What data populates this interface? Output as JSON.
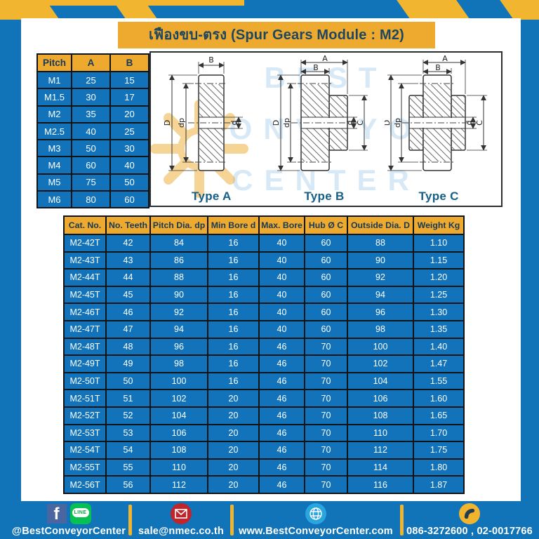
{
  "header": {
    "title": "เฟืองขบ-ตรง (Spur Gears Module : M2)"
  },
  "pitch_table": {
    "headers": [
      "Pitch",
      "A",
      "B"
    ],
    "rows": [
      [
        "M1",
        "25",
        "15"
      ],
      [
        "M1.5",
        "30",
        "17"
      ],
      [
        "M2",
        "35",
        "20"
      ],
      [
        "M2.5",
        "40",
        "25"
      ],
      [
        "M3",
        "50",
        "30"
      ],
      [
        "M4",
        "60",
        "40"
      ],
      [
        "M5",
        "75",
        "50"
      ],
      [
        "M6",
        "80",
        "60"
      ]
    ]
  },
  "diagrams": {
    "watermark_lines": [
      "BEST",
      "CONVEYOR",
      "CENTER"
    ],
    "types": [
      {
        "label": "Type A",
        "top_dims": [
          "B"
        ],
        "left_dims": [
          "D",
          "dp"
        ],
        "right_dims": [
          "d"
        ]
      },
      {
        "label": "Type B",
        "top_dims": [
          "A",
          "B"
        ],
        "left_dims": [
          "D",
          "dp"
        ],
        "right_dims": [
          "d",
          "C"
        ]
      },
      {
        "label": "Type C",
        "top_dims": [
          "A",
          "B"
        ],
        "left_dims": [
          "D",
          "dp"
        ],
        "right_dims": [
          "d",
          "C"
        ]
      }
    ]
  },
  "gear_table": {
    "headers": [
      "Cat. No.",
      "No. Teeth",
      "Pitch Dia. dp",
      "Min Bore d",
      "Max. Bore",
      "Hub Ø C",
      "Outside Dia. D",
      "Weight Kg"
    ],
    "rows": [
      [
        "M2-42T",
        "42",
        "84",
        "16",
        "40",
        "60",
        "88",
        "1.10"
      ],
      [
        "M2-43T",
        "43",
        "86",
        "16",
        "40",
        "60",
        "90",
        "1.15"
      ],
      [
        "M2-44T",
        "44",
        "88",
        "16",
        "40",
        "60",
        "92",
        "1.20"
      ],
      [
        "M2-45T",
        "45",
        "90",
        "16",
        "40",
        "60",
        "94",
        "1.25"
      ],
      [
        "M2-46T",
        "46",
        "92",
        "16",
        "40",
        "60",
        "96",
        "1.30"
      ],
      [
        "M2-47T",
        "47",
        "94",
        "16",
        "40",
        "60",
        "98",
        "1.35"
      ],
      [
        "M2-48T",
        "48",
        "96",
        "16",
        "46",
        "70",
        "100",
        "1.40"
      ],
      [
        "M2-49T",
        "49",
        "98",
        "16",
        "46",
        "70",
        "102",
        "1.47"
      ],
      [
        "M2-50T",
        "50",
        "100",
        "16",
        "46",
        "70",
        "104",
        "1.55"
      ],
      [
        "M2-51T",
        "51",
        "102",
        "20",
        "46",
        "70",
        "106",
        "1.60"
      ],
      [
        "M2-52T",
        "52",
        "104",
        "20",
        "46",
        "70",
        "108",
        "1.65"
      ],
      [
        "M2-53T",
        "53",
        "106",
        "20",
        "46",
        "70",
        "110",
        "1.70"
      ],
      [
        "M2-54T",
        "54",
        "108",
        "20",
        "46",
        "70",
        "112",
        "1.75"
      ],
      [
        "M2-55T",
        "55",
        "110",
        "20",
        "46",
        "70",
        "114",
        "1.80"
      ],
      [
        "M2-56T",
        "56",
        "112",
        "20",
        "46",
        "70",
        "116",
        "1.87"
      ]
    ]
  },
  "footer": {
    "social_label": "@BestConveyorCenter",
    "email": "sale@nmec.co.th",
    "website": "www.BestConveyorCenter.com",
    "phones": "086-3272600 , 02-0017766",
    "icons": [
      "facebook-icon",
      "line-icon",
      "mail-icon",
      "globe-icon",
      "phone-icon"
    ]
  },
  "colors": {
    "page_blue": "#1173B8",
    "cell_blue": "#1273BA",
    "gold": "#EDAA2F",
    "tape_yellow": "#F1B52F",
    "navy_text": "#1D4660",
    "border_dark": "#101417",
    "type_label_blue": "#166088",
    "facebook_blue": "#4A66A0",
    "line_green": "#06C152",
    "mail_red": "#C2242C",
    "globe_blue": "#2AA6DE",
    "phone_yellow": "#F0B42F"
  }
}
